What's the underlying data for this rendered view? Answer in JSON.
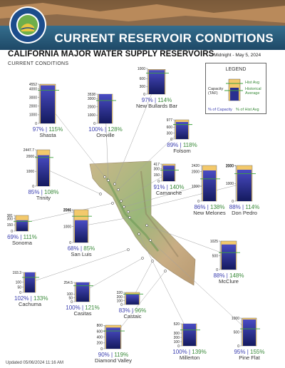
{
  "header": {
    "banner_title": "CURRENT RESERVOIR CONDITIONS",
    "main_title": "CALIFORNIA MAJOR WATER SUPPLY RESERVOIRS",
    "subtitle": "CURRENT CONDITIONS",
    "datestamp": "Midnight - May 5, 2024"
  },
  "legend": {
    "title": "LEGEND",
    "hist_avg": "Hist Avg",
    "historical_average": [
      "Historical",
      "Average"
    ],
    "capacity": [
      "Capacity",
      "(TAF)"
    ],
    "pct_capacity": "% of Capacity",
    "pct_hist_avg": "% of Hist Avg"
  },
  "footer": "Updated 05/06/2024 11:16 AM",
  "colors": {
    "capacity": "#f3c96b",
    "storage_top": "#4a4cc4",
    "storage_bottom": "#141a5e",
    "hist_avg": "#3fa33f",
    "pct_capacity": "#3b3fb0",
    "pct_hist_avg": "#3a8a3a"
  },
  "chart_data": {
    "type": "bar",
    "units": "TAF",
    "reservoirs": [
      {
        "name": "Shasta",
        "capacity": 4552,
        "ticks": [
          0,
          1000,
          2000,
          3000,
          4000,
          4552
        ],
        "pct_capacity": 97,
        "pct_hist_avg": 115,
        "ymax": 4552
      },
      {
        "name": "Oroville",
        "capacity": 3538,
        "ticks": [
          0,
          1000,
          2000,
          3000,
          3538
        ],
        "pct_capacity": 100,
        "pct_hist_avg": 128,
        "ymax": 3538
      },
      {
        "name": "New Bullards Bar",
        "capacity": 966,
        "ticks": [
          0,
          300,
          600,
          1000
        ],
        "pct_capacity": 97,
        "pct_hist_avg": 114,
        "ymax": 1000
      },
      {
        "name": "Folsom",
        "capacity": 977,
        "ticks": [
          0,
          300,
          600,
          977
        ],
        "pct_capacity": 89,
        "pct_hist_avg": 118,
        "ymax": 977
      },
      {
        "name": "Trinity",
        "capacity": 2447.7,
        "ticks": [
          0,
          1000,
          2000,
          2447.7
        ],
        "pct_capacity": 85,
        "pct_hist_avg": 108,
        "ymax": 2447.7
      },
      {
        "name": "Camanche",
        "capacity": 417,
        "ticks": [
          0,
          150,
          300,
          417
        ],
        "pct_capacity": 91,
        "pct_hist_avg": 140,
        "ymax": 417
      },
      {
        "name": "New Melones",
        "capacity": 2420,
        "ticks": [
          0,
          1000,
          2000,
          2420
        ],
        "pct_capacity": 86,
        "pct_hist_avg": 138,
        "ymax": 2420
      },
      {
        "name": "Don Pedro",
        "capacity": 2030,
        "ticks": [
          0,
          1000,
          2000,
          2030
        ],
        "pct_capacity": 88,
        "pct_hist_avg": 114,
        "ymax": 2030
      },
      {
        "name": "Sonoma",
        "capacity": 381,
        "ticks": [
          0,
          150,
          300,
          381
        ],
        "pct_capacity": 69,
        "pct_hist_avg": 111,
        "ymax": 381
      },
      {
        "name": "San Luis",
        "capacity": 2041,
        "ticks": [
          0,
          1000,
          2000,
          2041
        ],
        "pct_capacity": 68,
        "pct_hist_avg": 85,
        "ymax": 2041
      },
      {
        "name": "McClure",
        "capacity": 1025,
        "ticks": [
          0,
          500,
          1025
        ],
        "pct_capacity": 88,
        "pct_hist_avg": 148,
        "ymax": 1025
      },
      {
        "name": "Cachuma",
        "capacity": 193.3,
        "ticks": [
          0,
          50,
          100,
          193.3
        ],
        "pct_capacity": 102,
        "pct_hist_avg": 133,
        "ymax": 193.3
      },
      {
        "name": "Casitas",
        "capacity": 254.5,
        "ticks": [
          0,
          50,
          100,
          254.5
        ],
        "pct_capacity": 100,
        "pct_hist_avg": 121,
        "ymax": 254.5
      },
      {
        "name": "Castaic",
        "capacity": 320,
        "ticks": [
          0,
          100,
          200,
          320
        ],
        "pct_capacity": 83,
        "pct_hist_avg": 96,
        "ymax": 320
      },
      {
        "name": "Diamond Valley",
        "capacity": 810,
        "ticks": [
          0,
          200,
          400,
          600,
          800
        ],
        "pct_capacity": 90,
        "pct_hist_avg": 119,
        "ymax": 810
      },
      {
        "name": "Millerton",
        "capacity": 520,
        "ticks": [
          0,
          100,
          200,
          300,
          520
        ],
        "pct_capacity": 100,
        "pct_hist_avg": 139,
        "ymax": 520
      },
      {
        "name": "Pine Flat",
        "capacity": 1000,
        "ticks": [
          0,
          500,
          1000
        ],
        "pct_capacity": 95,
        "pct_hist_avg": 155,
        "ymax": 1000
      }
    ]
  }
}
